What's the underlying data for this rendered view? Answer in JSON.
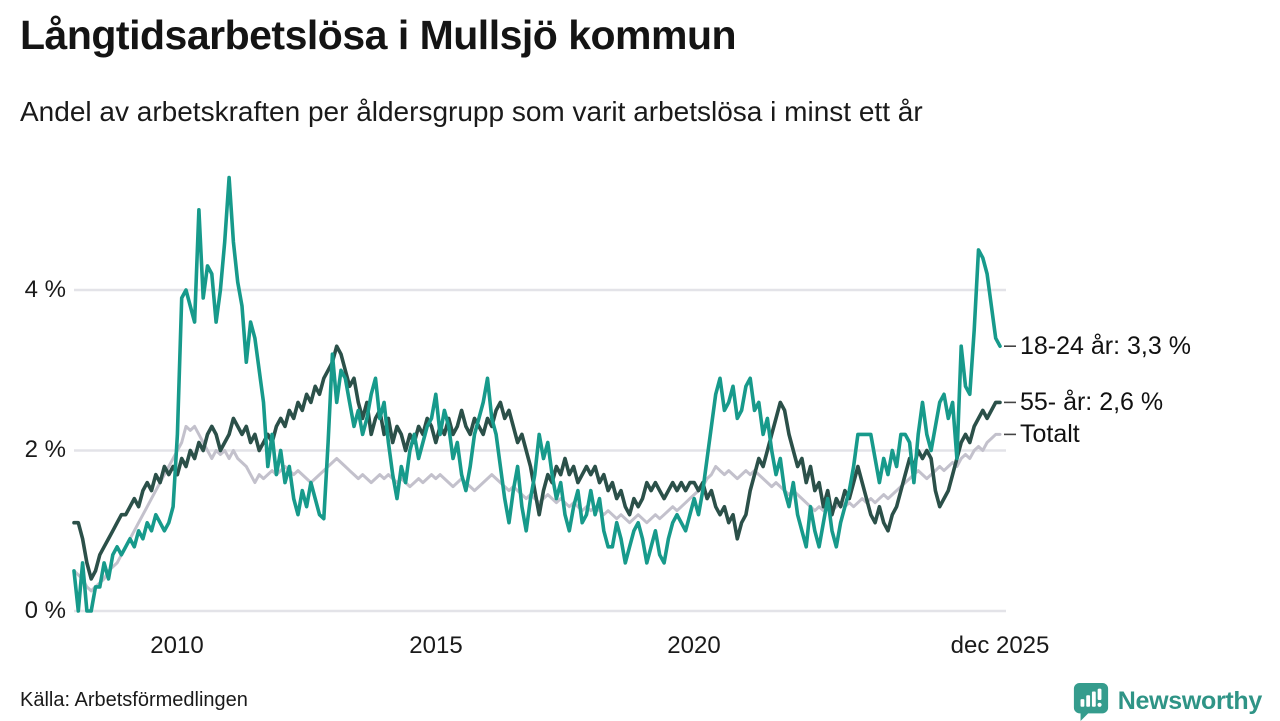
{
  "header": {
    "title": "Långtidsarbetslösa i Mullsjö kommun",
    "subtitle": "Andel av arbetskraften per åldersgrupp som varit arbetslösa i minst ett år"
  },
  "footer": {
    "source": "Källa: Arbetsförmedlingen",
    "brand": "Newsworthy",
    "brand_color": "#2f9486"
  },
  "chart_data": {
    "type": "line",
    "title": "Långtidsarbetslösa i Mullsjö kommun",
    "subtitle": "Andel av arbetskraften per åldersgrupp som varit arbetslösa i minst ett år",
    "unit": "%",
    "grid": true,
    "grid_color": "#e3e3e8",
    "legend_position": "right-end-labels",
    "x_domain": [
      2008.0,
      2025.9167
    ],
    "ylim": [
      0,
      5.6
    ],
    "x_frequency": "monthly",
    "y_ticks": [
      {
        "value": 0,
        "label": "0 %"
      },
      {
        "value": 2,
        "label": "2 %"
      },
      {
        "value": 4,
        "label": "4 %"
      }
    ],
    "x_ticks": [
      {
        "value": 2010,
        "label": "2010"
      },
      {
        "value": 2015,
        "label": "2015"
      },
      {
        "value": 2020,
        "label": "2020"
      },
      {
        "value": 2025.9167,
        "label": "dec 2025"
      }
    ],
    "series": [
      {
        "id": "18-24",
        "name": "18-24 år",
        "end_label": "18-24 år: 3,3 %",
        "end_value": 3.3,
        "color": "#179a8b",
        "stroke_width": 3.6,
        "values": [
          0.5,
          0.0,
          0.6,
          0.0,
          0.0,
          0.3,
          0.3,
          0.6,
          0.4,
          0.7,
          0.8,
          0.7,
          0.8,
          0.9,
          0.8,
          1.0,
          0.9,
          1.1,
          1.0,
          1.2,
          1.1,
          1.0,
          1.1,
          1.3,
          2.2,
          3.9,
          4.0,
          3.8,
          3.6,
          5.0,
          3.9,
          4.3,
          4.2,
          3.6,
          4.0,
          4.6,
          5.4,
          4.6,
          4.1,
          3.8,
          3.1,
          3.6,
          3.4,
          3.0,
          2.6,
          1.8,
          2.2,
          1.7,
          2.0,
          1.6,
          1.8,
          1.4,
          1.2,
          1.5,
          1.3,
          1.6,
          1.4,
          1.2,
          1.15,
          2.1,
          3.2,
          2.6,
          3.0,
          2.9,
          2.6,
          2.3,
          2.5,
          2.2,
          2.4,
          2.7,
          2.9,
          2.4,
          2.6,
          2.1,
          1.7,
          1.4,
          1.8,
          1.6,
          2.0,
          2.2,
          1.9,
          2.1,
          2.3,
          2.4,
          2.7,
          2.2,
          2.5,
          2.3,
          1.9,
          2.1,
          1.7,
          1.5,
          1.8,
          2.2,
          2.4,
          2.6,
          2.9,
          2.4,
          2.2,
          1.8,
          1.4,
          1.1,
          1.5,
          1.8,
          1.3,
          1.0,
          1.4,
          1.7,
          2.2,
          1.9,
          2.1,
          1.7,
          1.4,
          1.6,
          1.2,
          1.0,
          1.3,
          1.5,
          1.1,
          1.2,
          1.5,
          1.2,
          1.4,
          1.0,
          0.8,
          0.8,
          1.1,
          0.9,
          0.6,
          0.8,
          1.0,
          1.1,
          0.9,
          0.6,
          0.8,
          1.0,
          0.7,
          0.6,
          0.9,
          1.1,
          1.2,
          1.1,
          1.0,
          1.2,
          1.4,
          1.2,
          1.5,
          1.9,
          2.3,
          2.7,
          2.9,
          2.5,
          2.6,
          2.8,
          2.4,
          2.5,
          2.8,
          2.9,
          2.5,
          2.6,
          2.2,
          2.4,
          2.0,
          1.7,
          1.9,
          1.5,
          1.3,
          1.6,
          1.2,
          1.0,
          0.8,
          1.3,
          1.0,
          0.8,
          1.1,
          1.4,
          1.0,
          0.8,
          1.1,
          1.3,
          1.5,
          1.8,
          2.2,
          2.2,
          2.2,
          2.2,
          1.9,
          1.6,
          1.9,
          1.7,
          2.0,
          1.8,
          2.2,
          2.2,
          2.1,
          1.6,
          2.2,
          2.6,
          2.2,
          2.0,
          2.3,
          2.6,
          2.7,
          2.4,
          2.6,
          1.9,
          3.3,
          2.8,
          2.7,
          3.5,
          4.5,
          4.4,
          4.2,
          3.8,
          3.4,
          3.3
        ]
      },
      {
        "id": "55plus",
        "name": "55- år",
        "end_label": "55- år: 2,6 %",
        "end_value": 2.6,
        "color": "#2b5049",
        "stroke_width": 3.6,
        "values": [
          1.1,
          1.1,
          0.9,
          0.6,
          0.4,
          0.5,
          0.7,
          0.8,
          0.9,
          1.0,
          1.1,
          1.2,
          1.2,
          1.3,
          1.4,
          1.3,
          1.5,
          1.6,
          1.5,
          1.7,
          1.6,
          1.8,
          1.7,
          1.8,
          1.7,
          1.9,
          1.8,
          2.0,
          1.9,
          2.1,
          2.0,
          2.2,
          2.3,
          2.2,
          2.0,
          2.1,
          2.2,
          2.4,
          2.3,
          2.2,
          2.3,
          2.1,
          2.2,
          2.0,
          2.1,
          2.2,
          2.1,
          2.3,
          2.4,
          2.3,
          2.5,
          2.4,
          2.6,
          2.5,
          2.7,
          2.6,
          2.8,
          2.7,
          2.9,
          3.0,
          3.1,
          3.3,
          3.2,
          3.0,
          2.8,
          2.9,
          2.6,
          2.4,
          2.6,
          2.2,
          2.4,
          2.5,
          2.2,
          2.4,
          2.1,
          2.3,
          2.2,
          2.0,
          2.2,
          2.1,
          2.3,
          2.2,
          2.4,
          2.3,
          2.1,
          2.3,
          2.2,
          2.4,
          2.2,
          2.3,
          2.5,
          2.3,
          2.2,
          2.4,
          2.3,
          2.2,
          2.4,
          2.3,
          2.5,
          2.6,
          2.4,
          2.5,
          2.3,
          2.1,
          2.2,
          2.0,
          1.8,
          1.5,
          1.2,
          1.5,
          1.7,
          1.6,
          1.8,
          1.7,
          1.9,
          1.7,
          1.8,
          1.6,
          1.7,
          1.8,
          1.7,
          1.8,
          1.6,
          1.7,
          1.5,
          1.6,
          1.4,
          1.5,
          1.3,
          1.2,
          1.4,
          1.3,
          1.4,
          1.6,
          1.5,
          1.6,
          1.5,
          1.4,
          1.5,
          1.6,
          1.5,
          1.6,
          1.5,
          1.6,
          1.6,
          1.5,
          1.6,
          1.4,
          1.5,
          1.3,
          1.2,
          1.3,
          1.1,
          1.2,
          0.9,
          1.1,
          1.2,
          1.5,
          1.7,
          1.9,
          1.8,
          2.0,
          2.2,
          2.4,
          2.6,
          2.5,
          2.2,
          2.0,
          1.8,
          1.9,
          1.6,
          1.8,
          1.5,
          1.6,
          1.3,
          1.5,
          1.2,
          1.4,
          1.3,
          1.5,
          1.4,
          1.6,
          1.8,
          1.6,
          1.4,
          1.2,
          1.1,
          1.3,
          1.1,
          1.0,
          1.2,
          1.3,
          1.5,
          1.7,
          1.9,
          1.8,
          2.0,
          1.9,
          2.0,
          1.9,
          1.5,
          1.3,
          1.4,
          1.5,
          1.7,
          1.9,
          2.1,
          2.2,
          2.1,
          2.3,
          2.4,
          2.5,
          2.4,
          2.5,
          2.6,
          2.6
        ]
      },
      {
        "id": "totalt",
        "name": "Totalt",
        "end_label": "Totalt",
        "end_value": 2.2,
        "color": "#c3c1cc",
        "stroke_width": 3.0,
        "values": [
          0.5,
          0.45,
          0.4,
          0.3,
          0.25,
          0.3,
          0.35,
          0.4,
          0.5,
          0.55,
          0.6,
          0.7,
          0.8,
          0.9,
          1.0,
          1.1,
          1.2,
          1.3,
          1.4,
          1.5,
          1.6,
          1.7,
          1.8,
          1.9,
          2.0,
          2.1,
          2.3,
          2.25,
          2.3,
          2.2,
          2.1,
          2.0,
          1.9,
          2.0,
          1.95,
          2.0,
          1.9,
          2.0,
          1.9,
          1.85,
          1.8,
          1.7,
          1.6,
          1.7,
          1.65,
          1.7,
          1.75,
          1.7,
          1.75,
          1.8,
          1.75,
          1.7,
          1.75,
          1.7,
          1.65,
          1.6,
          1.65,
          1.7,
          1.75,
          1.8,
          1.85,
          1.9,
          1.85,
          1.8,
          1.75,
          1.7,
          1.65,
          1.7,
          1.65,
          1.6,
          1.65,
          1.7,
          1.65,
          1.7,
          1.65,
          1.6,
          1.65,
          1.6,
          1.55,
          1.6,
          1.65,
          1.6,
          1.65,
          1.7,
          1.65,
          1.7,
          1.65,
          1.6,
          1.55,
          1.6,
          1.65,
          1.6,
          1.55,
          1.5,
          1.55,
          1.6,
          1.65,
          1.7,
          1.65,
          1.6,
          1.55,
          1.5,
          1.55,
          1.5,
          1.45,
          1.4,
          1.45,
          1.4,
          1.35,
          1.4,
          1.45,
          1.4,
          1.35,
          1.4,
          1.35,
          1.3,
          1.35,
          1.3,
          1.25,
          1.3,
          1.25,
          1.3,
          1.25,
          1.2,
          1.25,
          1.2,
          1.15,
          1.2,
          1.15,
          1.1,
          1.15,
          1.2,
          1.15,
          1.1,
          1.15,
          1.2,
          1.15,
          1.2,
          1.25,
          1.3,
          1.25,
          1.3,
          1.35,
          1.4,
          1.45,
          1.5,
          1.55,
          1.65,
          1.7,
          1.8,
          1.75,
          1.7,
          1.75,
          1.7,
          1.65,
          1.7,
          1.75,
          1.7,
          1.75,
          1.7,
          1.65,
          1.6,
          1.55,
          1.6,
          1.55,
          1.5,
          1.45,
          1.5,
          1.45,
          1.4,
          1.35,
          1.3,
          1.25,
          1.3,
          1.25,
          1.3,
          1.25,
          1.3,
          1.35,
          1.3,
          1.35,
          1.3,
          1.35,
          1.4,
          1.35,
          1.4,
          1.35,
          1.4,
          1.45,
          1.4,
          1.45,
          1.5,
          1.55,
          1.6,
          1.65,
          1.7,
          1.75,
          1.7,
          1.65,
          1.7,
          1.75,
          1.8,
          1.75,
          1.8,
          1.85,
          1.8,
          1.9,
          1.95,
          1.9,
          2.0,
          2.05,
          2.0,
          2.1,
          2.15,
          2.2,
          2.2
        ]
      }
    ]
  }
}
